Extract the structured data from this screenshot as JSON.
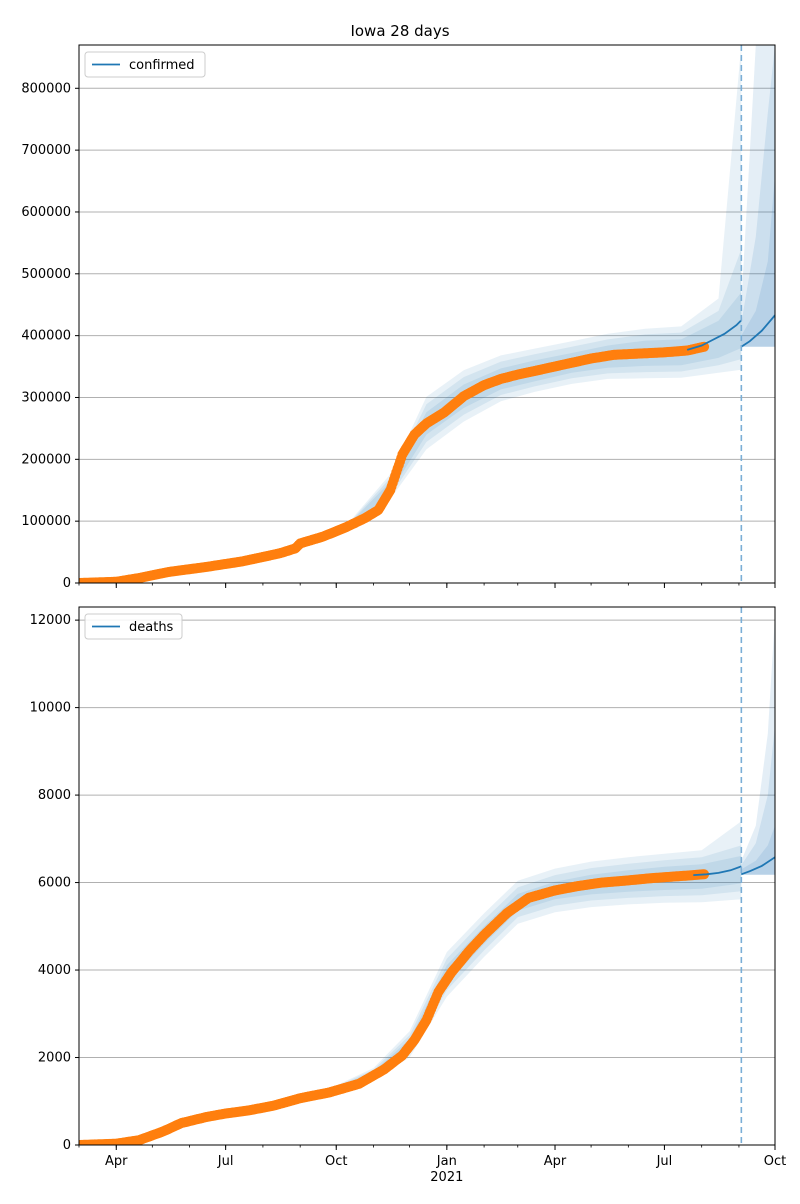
{
  "figure": {
    "title": "Iowa 28 days"
  },
  "colors": {
    "model_line": "#1f77b4",
    "observed_points": "#ff7f0e",
    "interval_fill": "#1f77b4",
    "vline": "#7aaed6",
    "grid": "#b0b0b0"
  },
  "chart_data": [
    {
      "type": "line",
      "title": "",
      "xlabel": "",
      "ylabel": "",
      "legend": {
        "label": "confirmed",
        "placement": "top-left"
      },
      "ylim": [
        0,
        870000
      ],
      "yticks": [
        0,
        100000,
        200000,
        300000,
        400000,
        500000,
        600000,
        700000,
        800000
      ],
      "grid": true,
      "xticks": [
        {
          "date": "2020-04-01",
          "label": "Apr"
        },
        {
          "date": "2020-07-01",
          "label": "Jul"
        },
        {
          "date": "2020-10-01",
          "label": "Oct"
        },
        {
          "date": "2021-01-01",
          "label": "Jan",
          "year": "2021"
        },
        {
          "date": "2021-04-01",
          "label": "Apr"
        },
        {
          "date": "2021-07-01",
          "label": "Jul"
        },
        {
          "date": "2021-10-01",
          "label": "Oct"
        }
      ],
      "x_range": [
        "2020-03-01",
        "2021-10-01"
      ],
      "forecast_start": "2021-09-03",
      "observed": {
        "x": [
          "2020-03-01",
          "2020-04-01",
          "2020-04-20",
          "2020-05-15",
          "2020-06-15",
          "2020-07-15",
          "2020-08-15",
          "2020-08-28",
          "2020-09-01",
          "2020-09-20",
          "2020-10-10",
          "2020-10-25",
          "2020-11-05",
          "2020-11-15",
          "2020-11-25",
          "2020-12-05",
          "2020-12-15",
          "2020-12-30",
          "2021-01-15",
          "2021-02-01",
          "2021-02-15",
          "2021-03-01",
          "2021-03-20",
          "2021-04-10",
          "2021-05-01",
          "2021-05-20",
          "2021-06-10",
          "2021-07-01",
          "2021-07-20",
          "2021-08-03"
        ],
        "y": [
          0,
          2000,
          8000,
          18000,
          26000,
          35000,
          48000,
          56000,
          64000,
          75000,
          91000,
          105000,
          118000,
          150000,
          208000,
          240000,
          258000,
          276000,
          302000,
          320000,
          330000,
          337000,
          345000,
          354000,
          363000,
          369000,
          371000,
          373000,
          376000,
          382000
        ]
      },
      "model_fit": {
        "x": [
          "2021-07-20",
          "2021-08-01",
          "2021-08-10",
          "2021-08-20",
          "2021-08-30",
          "2021-09-03"
        ],
        "y": [
          377000,
          384000,
          393000,
          403000,
          417000,
          425000
        ]
      },
      "forecast": {
        "x": [
          "2021-09-03",
          "2021-09-10",
          "2021-09-20",
          "2021-10-01"
        ],
        "y": [
          382000,
          391000,
          408000,
          433000
        ]
      },
      "intervals": {
        "x": [
          "2020-10-15",
          "2020-11-15",
          "2020-12-15",
          "2021-01-15",
          "2021-02-15",
          "2021-03-15",
          "2021-04-15",
          "2021-05-15",
          "2021-06-15",
          "2021-07-15",
          "2021-08-15",
          "2021-09-03"
        ],
        "center": [
          98000,
          155000,
          258000,
          302000,
          330000,
          342000,
          356000,
          366000,
          371000,
          374000,
          395000,
          425000
        ],
        "bands": [
          {
            "lo": [
              94000,
              147000,
              240000,
              283000,
              313000,
              326000,
              340000,
              348000,
              351000,
              352000,
              364000,
              380000
            ],
            "hi": [
              102000,
              164000,
              276000,
              321000,
              347000,
              360000,
              372000,
              384000,
              392000,
              394000,
              424000,
              470000
            ]
          },
          {
            "lo": [
              92000,
              141000,
              228000,
              272000,
              304000,
              318000,
              331000,
              339000,
              341000,
              342000,
              352000,
              362000
            ],
            "hi": [
              104000,
              170000,
              289000,
              333000,
              358000,
              370000,
              382000,
              394000,
              402000,
              405000,
              440000,
              540000
            ]
          },
          {
            "lo": [
              90000,
              136000,
              216000,
              261000,
              294000,
              309000,
              322000,
              330000,
              331000,
              332000,
              340000,
              345000
            ],
            "hi": [
              106000,
              176000,
              301000,
              344000,
              368000,
              379000,
              391000,
              403000,
              411000,
              415000,
              460000,
              870000
            ]
          }
        ]
      },
      "forecast_bands": {
        "x": [
          "2021-09-03",
          "2021-09-15",
          "2021-09-25",
          "2021-10-01"
        ],
        "bands": [
          {
            "lo": [
              382000,
              382000,
              382000,
              382000
            ],
            "hi": [
              400000,
              440000,
              520000,
              660000
            ]
          },
          {
            "lo": [
              382000,
              382000,
              382000,
              382000
            ],
            "hi": [
              420000,
              560000,
              760000,
              870000
            ]
          },
          {
            "lo": [
              382000,
              382000,
              382000,
              382000
            ],
            "hi": [
              450000,
              870000,
              870000,
              870000
            ]
          }
        ]
      }
    },
    {
      "type": "line",
      "title": "",
      "xlabel": "",
      "ylabel": "",
      "legend": {
        "label": "deaths",
        "placement": "top-left"
      },
      "ylim": [
        0,
        12300
      ],
      "yticks": [
        0,
        2000,
        4000,
        6000,
        8000,
        10000,
        12000
      ],
      "grid": true,
      "xticks": [
        {
          "date": "2020-04-01",
          "label": "Apr"
        },
        {
          "date": "2020-07-01",
          "label": "Jul"
        },
        {
          "date": "2020-10-01",
          "label": "Oct"
        },
        {
          "date": "2021-01-01",
          "label": "Jan",
          "year": "2021"
        },
        {
          "date": "2021-04-01",
          "label": "Apr"
        },
        {
          "date": "2021-07-01",
          "label": "Jul"
        },
        {
          "date": "2021-10-01",
          "label": "Oct"
        }
      ],
      "x_range": [
        "2020-03-01",
        "2021-10-01"
      ],
      "forecast_start": "2021-09-03",
      "observed": {
        "x": [
          "2020-03-01",
          "2020-04-01",
          "2020-04-20",
          "2020-05-10",
          "2020-05-25",
          "2020-06-15",
          "2020-07-01",
          "2020-07-20",
          "2020-08-10",
          "2020-09-01",
          "2020-09-25",
          "2020-10-20",
          "2020-11-10",
          "2020-11-25",
          "2020-12-05",
          "2020-12-15",
          "2020-12-25",
          "2021-01-05",
          "2021-01-20",
          "2021-02-01",
          "2021-02-20",
          "2021-03-10",
          "2021-04-01",
          "2021-04-20",
          "2021-05-10",
          "2021-06-01",
          "2021-06-20",
          "2021-07-10",
          "2021-07-25",
          "2021-08-03"
        ],
        "y": [
          0,
          30,
          110,
          310,
          500,
          640,
          720,
          790,
          900,
          1070,
          1200,
          1400,
          1730,
          2050,
          2400,
          2850,
          3500,
          3950,
          4450,
          4800,
          5300,
          5650,
          5820,
          5920,
          6000,
          6050,
          6100,
          6140,
          6170,
          6190
        ]
      },
      "model_fit": {
        "x": [
          "2021-07-25",
          "2021-08-05",
          "2021-08-15",
          "2021-08-25",
          "2021-09-03"
        ],
        "y": [
          6170,
          6190,
          6220,
          6280,
          6370
        ]
      },
      "forecast": {
        "x": [
          "2021-09-03",
          "2021-09-10",
          "2021-09-20",
          "2021-10-01"
        ],
        "y": [
          6190,
          6260,
          6380,
          6580
        ]
      },
      "intervals": {
        "x": [
          "2020-10-01",
          "2020-11-01",
          "2020-12-01",
          "2021-01-01",
          "2021-02-01",
          "2021-03-01",
          "2021-04-01",
          "2021-05-01",
          "2021-06-01",
          "2021-07-01",
          "2021-08-01",
          "2021-09-03"
        ],
        "center": [
          1290,
          1620,
          2300,
          3900,
          4800,
          5560,
          5820,
          5960,
          6050,
          6120,
          6190,
          6370
        ],
        "bands": [
          {
            "lo": [
              1260,
              1570,
              2180,
              3690,
              4600,
              5360,
              5620,
              5730,
              5790,
              5830,
              5860,
              5980
            ],
            "hi": [
              1320,
              1680,
              2420,
              4110,
              5000,
              5740,
              6020,
              6180,
              6280,
              6360,
              6420,
              6610
            ]
          },
          {
            "lo": [
              1240,
              1530,
              2090,
              3540,
              4450,
              5210,
              5470,
              5590,
              5650,
              5690,
              5710,
              5800
            ],
            "hi": [
              1340,
              1720,
              2510,
              4260,
              5150,
              5890,
              6170,
              6330,
              6430,
              6510,
              6580,
              6850
            ]
          },
          {
            "lo": [
              1220,
              1490,
              2000,
              3390,
              4300,
              5060,
              5320,
              5440,
              5500,
              5540,
              5550,
              5620
            ],
            "hi": [
              1360,
              1760,
              2600,
              4410,
              5300,
              6040,
              6320,
              6480,
              6580,
              6660,
              6740,
              7400
            ]
          }
        ]
      },
      "forecast_bands": {
        "x": [
          "2021-09-03",
          "2021-09-15",
          "2021-09-25",
          "2021-10-01"
        ],
        "bands": [
          {
            "lo": [
              6180,
              6180,
              6180,
              6180
            ],
            "hi": [
              6300,
              6500,
              6850,
              7300
            ]
          },
          {
            "lo": [
              6180,
              6180,
              6180,
              6180
            ],
            "hi": [
              6400,
              6900,
              8000,
              9600
            ]
          },
          {
            "lo": [
              6180,
              6180,
              6180,
              6180
            ],
            "hi": [
              6500,
              7300,
              9400,
              12100
            ]
          }
        ]
      }
    }
  ]
}
